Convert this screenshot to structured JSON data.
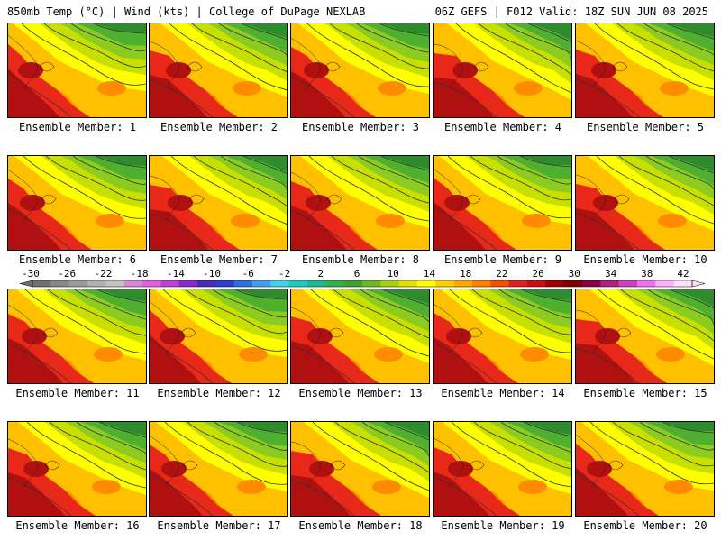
{
  "header": {
    "left": "850mb Temp (°C) | Wind (kts) | College of DuPage NEXLAB",
    "right": "06Z GEFS | F012 Valid: 18Z SUN JUN 08 2025"
  },
  "members": [
    {
      "label": "Ensemble Member: 1"
    },
    {
      "label": "Ensemble Member: 2"
    },
    {
      "label": "Ensemble Member: 3"
    },
    {
      "label": "Ensemble Member: 4"
    },
    {
      "label": "Ensemble Member: 5"
    },
    {
      "label": "Ensemble Member: 6"
    },
    {
      "label": "Ensemble Member: 7"
    },
    {
      "label": "Ensemble Member: 8"
    },
    {
      "label": "Ensemble Member: 9"
    },
    {
      "label": "Ensemble Member: 10"
    },
    {
      "label": "Ensemble Member: 11"
    },
    {
      "label": "Ensemble Member: 12"
    },
    {
      "label": "Ensemble Member: 13"
    },
    {
      "label": "Ensemble Member: 14"
    },
    {
      "label": "Ensemble Member: 15"
    },
    {
      "label": "Ensemble Member: 16"
    },
    {
      "label": "Ensemble Member: 17"
    },
    {
      "label": "Ensemble Member: 18"
    },
    {
      "label": "Ensemble Member: 19"
    },
    {
      "label": "Ensemble Member: 20"
    }
  ],
  "colorbar": {
    "ticks": [
      "-30",
      "-26",
      "-22",
      "-18",
      "-14",
      "-10",
      "-6",
      "-2",
      "2",
      "6",
      "10",
      "14",
      "18",
      "22",
      "26",
      "30",
      "34",
      "38",
      "42"
    ],
    "colors": [
      "#707070",
      "#888888",
      "#9a9a9a",
      "#b0b0b0",
      "#c2c2c2",
      "#d58ad8",
      "#e060e0",
      "#c040d8",
      "#8a2ad0",
      "#4a2ab8",
      "#2a40d0",
      "#2a70e0",
      "#40a0f0",
      "#40d0e8",
      "#20c8c0",
      "#20b890",
      "#30b050",
      "#40a030",
      "#70b820",
      "#a8d010",
      "#e0e000",
      "#ffff00",
      "#ffd000",
      "#ffa800",
      "#ff8000",
      "#f05000",
      "#e02020",
      "#c81010",
      "#a00000",
      "#800000",
      "#900040",
      "#b02080",
      "#d040c0",
      "#f070f0",
      "#ffb0ff",
      "#ffe0ff"
    ]
  },
  "map_palette": {
    "green_dark": "#2e8b2e",
    "green": "#4fb030",
    "green_light": "#8ccc20",
    "yellow_green": "#c8e000",
    "yellow": "#ffff00",
    "orange_light": "#ffc000",
    "orange": "#ff8c00",
    "red": "#e82818",
    "red_dark": "#b01010"
  }
}
